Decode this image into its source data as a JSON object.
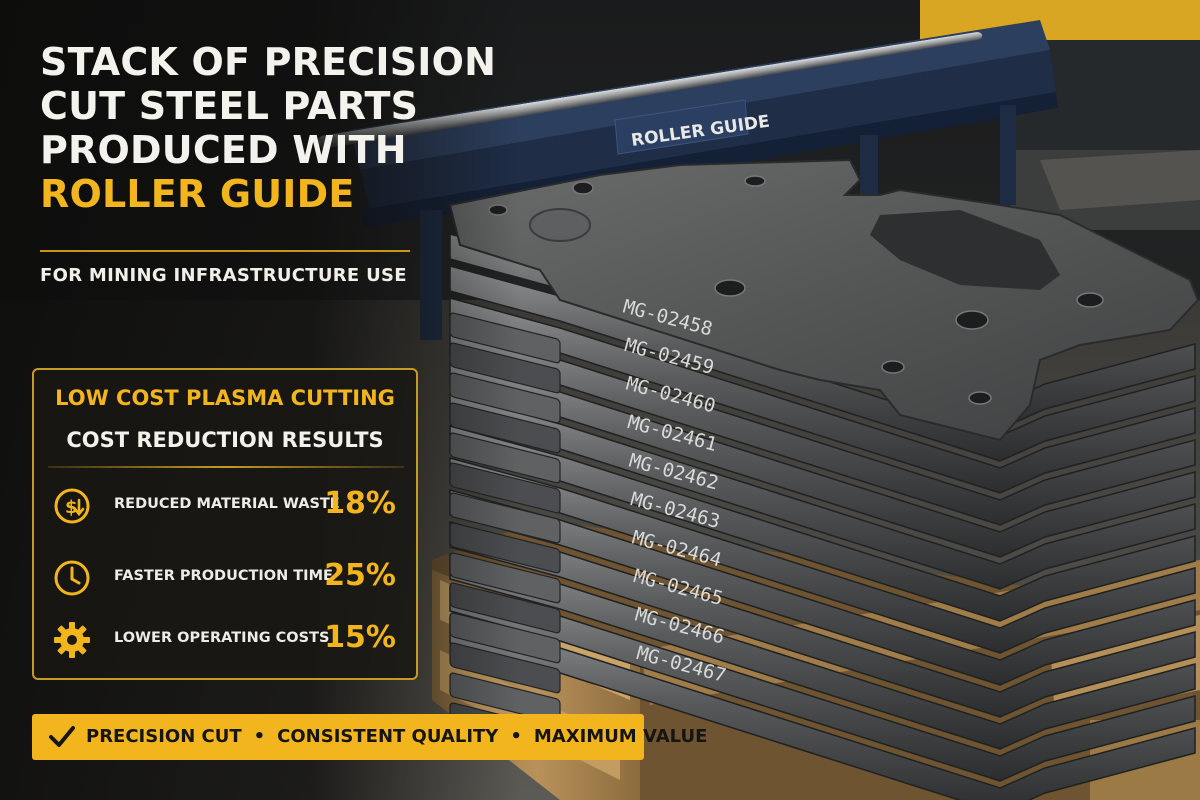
{
  "headline": {
    "line1": "STACK OF PRECISION",
    "line2": "CUT STEEL PARTS",
    "line3": "PRODUCED WITH",
    "line4_accent": "ROLLER GUIDE"
  },
  "subheadline": "FOR MINING INFRASTRUCTURE USE",
  "conveyor_sign": "ROLLER GUIDE",
  "card": {
    "title": "LOW COST PLASMA CUTTING",
    "subtitle": "COST REDUCTION RESULTS",
    "metrics": [
      {
        "label": "REDUCED MATERIAL WASTE",
        "value": "18%",
        "icon": "dollar-down-icon"
      },
      {
        "label": "FASTER PRODUCTION TIME",
        "value": "25%",
        "icon": "clock-icon"
      },
      {
        "label": "LOWER OPERATING COSTS",
        "value": "15%",
        "icon": "gear-icon"
      }
    ]
  },
  "banner": {
    "item1": "PRECISION CUT",
    "item2": "CONSISTENT QUALITY",
    "item3": "MAXIMUM VALUE",
    "separator": "•",
    "icon": "checkmark-icon"
  },
  "part_numbers": [
    "MG-02458",
    "MG-02459",
    "MG-02460",
    "MG-02461",
    "MG-02462",
    "MG-02463",
    "MG-02464",
    "MG-02465",
    "MG-02466",
    "MG-02467"
  ],
  "colors": {
    "accent": "#f2b51d",
    "text": "#f3f1ea",
    "steel": "#55575a",
    "pallet": "#b08a52"
  }
}
